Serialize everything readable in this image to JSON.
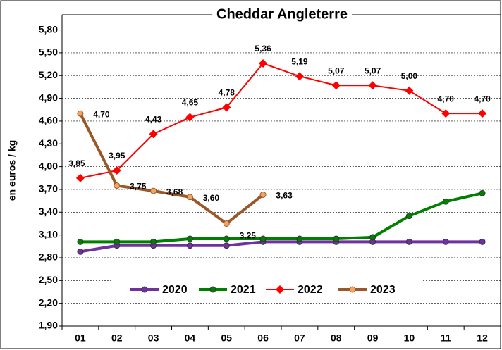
{
  "chart_data": {
    "type": "line",
    "title": "Cheddar Angleterre",
    "y_label": "en euros / kg",
    "categories": [
      "01",
      "02",
      "03",
      "04",
      "05",
      "06",
      "07",
      "08",
      "09",
      "10",
      "11",
      "12"
    ],
    "ylim": [
      1.9,
      6.0
    ],
    "yticks": [
      {
        "value": 1.9,
        "label": "1,90"
      },
      {
        "value": 2.2,
        "label": "2,20"
      },
      {
        "value": 2.5,
        "label": "2,50"
      },
      {
        "value": 2.8,
        "label": "2,80"
      },
      {
        "value": 3.1,
        "label": "3,10"
      },
      {
        "value": 3.4,
        "label": "3,40"
      },
      {
        "value": 3.7,
        "label": "3,70"
      },
      {
        "value": 4.0,
        "label": "4,00"
      },
      {
        "value": 4.3,
        "label": "4,30"
      },
      {
        "value": 4.6,
        "label": "4,60"
      },
      {
        "value": 4.9,
        "label": "4,90"
      },
      {
        "value": 5.2,
        "label": "5,20"
      },
      {
        "value": 5.5,
        "label": "5,50"
      },
      {
        "value": 5.8,
        "label": "5,80"
      }
    ],
    "grid": true,
    "series": [
      {
        "name": "2020",
        "color": "#7030a0",
        "marker": "circle",
        "marker_color": "#7030a0",
        "values": [
          2.88,
          2.96,
          2.96,
          2.96,
          2.96,
          3.01,
          3.01,
          3.01,
          3.01,
          3.01,
          3.01,
          3.01
        ]
      },
      {
        "name": "2021",
        "color": "#008000",
        "marker": "circle",
        "marker_color": "#008000",
        "values": [
          3.01,
          3.01,
          3.01,
          3.05,
          3.05,
          3.05,
          3.05,
          3.05,
          3.07,
          3.35,
          3.54,
          3.65
        ]
      },
      {
        "name": "2022",
        "color": "#ff0000",
        "marker": "diamond",
        "marker_color": "#ff0000",
        "values": [
          3.85,
          3.95,
          4.43,
          4.65,
          4.78,
          5.36,
          5.19,
          5.07,
          5.07,
          5.0,
          4.7,
          4.7
        ],
        "value_labels": [
          "3,85",
          "3,95",
          "4,43",
          "4,65",
          "4,78",
          "5,36",
          "5,19",
          "5,07",
          "5,07",
          "5,00",
          "4,70",
          "4,70"
        ]
      },
      {
        "name": "2023",
        "color": "#99582a",
        "marker": "circle",
        "marker_color": "#f4a460",
        "values": [
          4.7,
          3.75,
          3.68,
          3.6,
          3.25,
          3.63,
          null,
          null,
          null,
          null,
          null,
          null
        ],
        "value_labels": [
          "4,70",
          "3,75",
          "3,68",
          "3,60",
          "3,25",
          "3,63",
          null,
          null,
          null,
          null,
          null,
          null
        ]
      }
    ]
  }
}
